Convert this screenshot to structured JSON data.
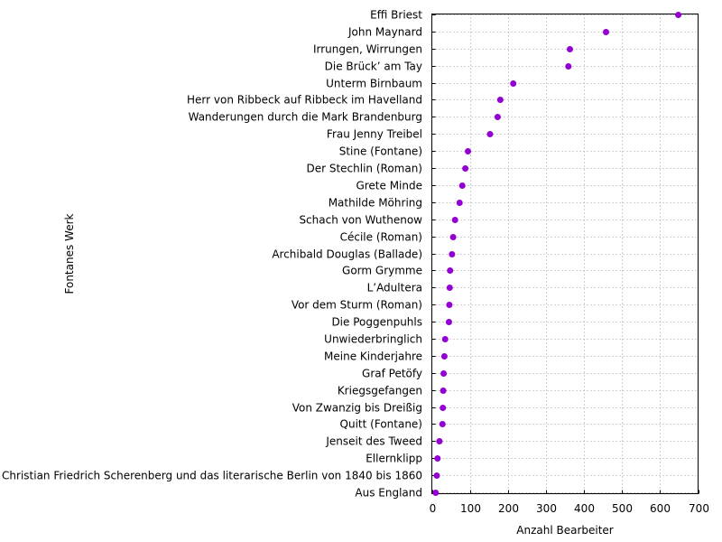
{
  "chart_data": {
    "type": "scatter",
    "xlabel": "Anzahl Bearbeiter",
    "ylabel": "Fontanes Werk",
    "xlim": [
      0,
      700
    ],
    "xticks": [
      0,
      100,
      200,
      300,
      400,
      500,
      600,
      700
    ],
    "grid": true,
    "marker_color": "#9400d3",
    "categories": [
      "Effi Briest",
      "John Maynard",
      "Irrungen, Wirrungen",
      "Die Brück’ am Tay",
      "Unterm Birnbaum",
      "Herr von Ribbeck auf Ribbeck im Havelland",
      "Wanderungen durch die Mark Brandenburg",
      "Frau Jenny Treibel",
      "Stine (Fontane)",
      "Der Stechlin (Roman)",
      "Grete Minde",
      "Mathilde Möhring",
      "Schach von Wuthenow",
      "Cécile (Roman)",
      "Archibald Douglas (Ballade)",
      "Gorm Grymme",
      "L’Adultera",
      "Vor dem Sturm (Roman)",
      "Die Poggenpuhls",
      "Unwiederbringlich",
      "Meine Kinderjahre",
      "Graf Petöfy",
      "Kriegsgefangen",
      "Von Zwanzig bis Dreißig",
      "Quitt (Fontane)",
      "Jenseit des Tweed",
      "Ellernklipp",
      "Christian Friedrich Scherenberg und das literarische Berlin von 1840 bis 1860",
      "Aus England"
    ],
    "values": [
      648,
      458,
      363,
      359,
      214,
      180,
      173,
      153,
      95,
      88,
      80,
      73,
      61,
      56,
      53,
      48,
      47,
      46,
      45,
      35,
      33,
      31,
      30,
      29,
      28,
      20,
      15,
      13,
      10
    ]
  }
}
